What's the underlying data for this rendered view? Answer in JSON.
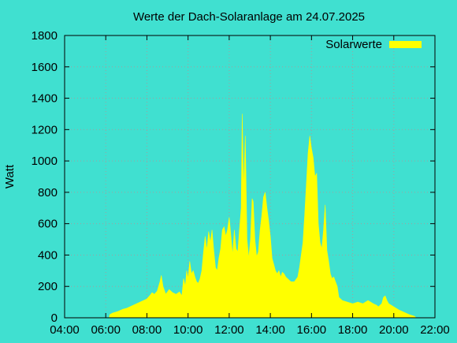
{
  "chart_data": {
    "type": "area",
    "title": "Werte der Dach-Solaranlage am 24.07.2025",
    "ylabel": "Watt",
    "xlabel": "",
    "xlim": [
      "04:00",
      "22:00"
    ],
    "ylim": [
      0,
      1800
    ],
    "x_ticks": [
      "04:00",
      "06:00",
      "08:00",
      "10:00",
      "12:00",
      "14:00",
      "16:00",
      "18:00",
      "20:00",
      "22:00"
    ],
    "y_ticks": [
      0,
      200,
      400,
      600,
      800,
      1000,
      1200,
      1400,
      1600,
      1800
    ],
    "grid": true,
    "legend_position": "top-right",
    "series": [
      {
        "name": "Solarwerte",
        "color": "#ffff00",
        "points": [
          [
            "06:10",
            0
          ],
          [
            "06:12",
            20
          ],
          [
            "06:20",
            30
          ],
          [
            "06:35",
            40
          ],
          [
            "06:50",
            55
          ],
          [
            "07:00",
            60
          ],
          [
            "07:10",
            70
          ],
          [
            "07:20",
            80
          ],
          [
            "07:30",
            90
          ],
          [
            "07:40",
            100
          ],
          [
            "07:50",
            110
          ],
          [
            "08:00",
            120
          ],
          [
            "08:08",
            140
          ],
          [
            "08:15",
            160
          ],
          [
            "08:22",
            150
          ],
          [
            "08:30",
            170
          ],
          [
            "08:38",
            230
          ],
          [
            "08:42",
            270
          ],
          [
            "08:47",
            200
          ],
          [
            "08:55",
            150
          ],
          [
            "09:05",
            180
          ],
          [
            "09:15",
            160
          ],
          [
            "09:25",
            150
          ],
          [
            "09:35",
            165
          ],
          [
            "09:42",
            140
          ],
          [
            "09:47",
            250
          ],
          [
            "09:52",
            200
          ],
          [
            "09:56",
            300
          ],
          [
            "10:00",
            250
          ],
          [
            "10:05",
            360
          ],
          [
            "10:10",
            280
          ],
          [
            "10:15",
            300
          ],
          [
            "10:20",
            260
          ],
          [
            "10:25",
            230
          ],
          [
            "10:30",
            220
          ],
          [
            "10:35",
            250
          ],
          [
            "10:40",
            300
          ],
          [
            "10:45",
            420
          ],
          [
            "10:50",
            520
          ],
          [
            "10:55",
            430
          ],
          [
            "11:00",
            550
          ],
          [
            "11:05",
            480
          ],
          [
            "11:10",
            560
          ],
          [
            "11:15",
            430
          ],
          [
            "11:20",
            320
          ],
          [
            "11:25",
            300
          ],
          [
            "11:30",
            380
          ],
          [
            "11:35",
            440
          ],
          [
            "11:40",
            560
          ],
          [
            "11:45",
            580
          ],
          [
            "11:50",
            520
          ],
          [
            "11:55",
            560
          ],
          [
            "12:00",
            640
          ],
          [
            "12:05",
            520
          ],
          [
            "12:10",
            400
          ],
          [
            "12:15",
            560
          ],
          [
            "12:20",
            440
          ],
          [
            "12:25",
            420
          ],
          [
            "12:30",
            560
          ],
          [
            "12:35",
            700
          ],
          [
            "12:38",
            1300
          ],
          [
            "12:42",
            820
          ],
          [
            "12:47",
            1160
          ],
          [
            "12:52",
            500
          ],
          [
            "12:57",
            380
          ],
          [
            "13:02",
            500
          ],
          [
            "13:07",
            760
          ],
          [
            "13:10",
            740
          ],
          [
            "13:15",
            500
          ],
          [
            "13:20",
            390
          ],
          [
            "13:25",
            420
          ],
          [
            "13:30",
            560
          ],
          [
            "13:35",
            650
          ],
          [
            "13:40",
            770
          ],
          [
            "13:45",
            800
          ],
          [
            "13:50",
            700
          ],
          [
            "13:55",
            620
          ],
          [
            "14:00",
            520
          ],
          [
            "14:05",
            380
          ],
          [
            "14:10",
            340
          ],
          [
            "14:15",
            300
          ],
          [
            "14:20",
            280
          ],
          [
            "14:25",
            300
          ],
          [
            "14:30",
            260
          ],
          [
            "14:35",
            290
          ],
          [
            "14:40",
            280
          ],
          [
            "14:45",
            260
          ],
          [
            "14:50",
            250
          ],
          [
            "14:55",
            240
          ],
          [
            "15:00",
            230
          ],
          [
            "15:10",
            230
          ],
          [
            "15:20",
            260
          ],
          [
            "15:25",
            320
          ],
          [
            "15:30",
            400
          ],
          [
            "15:35",
            480
          ],
          [
            "15:40",
            650
          ],
          [
            "15:45",
            850
          ],
          [
            "15:50",
            1050
          ],
          [
            "15:55",
            1160
          ],
          [
            "16:00",
            1080
          ],
          [
            "16:05",
            1020
          ],
          [
            "16:10",
            900
          ],
          [
            "16:15",
            920
          ],
          [
            "16:20",
            600
          ],
          [
            "16:25",
            480
          ],
          [
            "16:30",
            440
          ],
          [
            "16:35",
            560
          ],
          [
            "16:40",
            720
          ],
          [
            "16:45",
            430
          ],
          [
            "16:50",
            360
          ],
          [
            "16:55",
            280
          ],
          [
            "17:00",
            250
          ],
          [
            "17:05",
            260
          ],
          [
            "17:10",
            230
          ],
          [
            "17:15",
            200
          ],
          [
            "17:20",
            130
          ],
          [
            "17:30",
            110
          ],
          [
            "17:45",
            100
          ],
          [
            "18:00",
            90
          ],
          [
            "18:15",
            100
          ],
          [
            "18:30",
            90
          ],
          [
            "18:45",
            110
          ],
          [
            "19:00",
            90
          ],
          [
            "19:10",
            80
          ],
          [
            "19:15",
            70
          ],
          [
            "19:25",
            90
          ],
          [
            "19:30",
            130
          ],
          [
            "19:35",
            140
          ],
          [
            "19:40",
            110
          ],
          [
            "19:45",
            90
          ],
          [
            "20:00",
            70
          ],
          [
            "20:15",
            50
          ],
          [
            "20:30",
            35
          ],
          [
            "20:45",
            20
          ],
          [
            "21:00",
            10
          ],
          [
            "21:05",
            0
          ]
        ]
      }
    ]
  }
}
